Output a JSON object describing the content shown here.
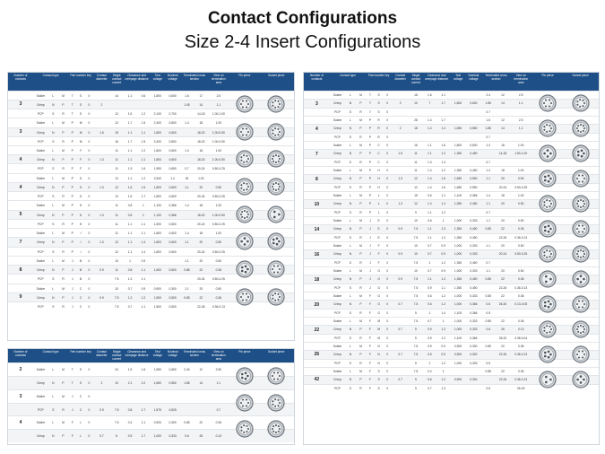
{
  "title": "Contact Configurations",
  "subtitle": "Size 2-4 Insert Configurations",
  "headers": {
    "num_contacts": "Number of contacts",
    "contact_type": "Contact type",
    "part_number_key": "Part number key",
    "contact_diameter": "Contact diameter",
    "single_contact_current": "Single contact current",
    "clearance_creepage": "Clearance and creepage distance",
    "test_voltage": "Test voltage",
    "nominal_voltage": "Nominal voltage",
    "termination_cross_section": "Terminated cross section",
    "view_on_termination": "View on termination area",
    "pin_piece": "Pin piece",
    "socket_piece": "Socket piece"
  },
  "contact_types": [
    "Solder",
    "Crimp",
    "PCP"
  ],
  "left_groups": [
    {
      "n": "3",
      "rows": [
        [
          "Solder",
          "L",
          "M",
          "T",
          "S",
          "0",
          "",
          "14",
          "1.1",
          "0.6",
          "1,800",
          "0,600",
          "1.6",
          "17",
          "2.5"
        ],
        [
          "Crimp",
          "N",
          "P",
          "T",
          "S",
          "0",
          "2",
          "",
          "",
          "",
          "",
          "",
          "1.05",
          "14",
          "1.1"
        ],
        [
          "PCP",
          "S",
          "R",
          "T",
          "S",
          "0",
          "",
          "12",
          "1.6",
          "1.2",
          "2,100",
          "0,700",
          "",
          "14-18",
          "1.00-1.00"
        ]
      ]
    },
    {
      "n": "3",
      "rows": [
        [
          "Solder",
          "L",
          "M",
          "P",
          "M",
          "0",
          "",
          "12",
          "1.7",
          "1.5",
          "2,400",
          "0,800",
          "1.4",
          "18",
          "1.00"
        ],
        [
          "Crimp",
          "N",
          "P",
          "P",
          "M",
          "0",
          "1.6",
          "15",
          "1.1",
          "1.1",
          "1,800",
          "0,600",
          "",
          "18-20",
          "1.00-0.50"
        ],
        [
          "PCP",
          "S",
          "R",
          "P",
          "M",
          "0",
          "",
          "16",
          "1.7",
          "1.5",
          "2,400",
          "0,800",
          "",
          "18-20",
          "1.00-0.50"
        ]
      ]
    },
    {
      "n": "4",
      "rows": [
        [
          "Solder",
          "L",
          "M",
          "P",
          "F",
          "0",
          "",
          "11",
          "1.1",
          "1.2",
          "1,800",
          "0,600",
          "1.4",
          "18",
          "1.00"
        ],
        [
          "Crimp",
          "N",
          "P",
          "P",
          "F",
          "0",
          "1.3",
          "11",
          "1.1",
          "1.1",
          "1,800",
          "0,600",
          "",
          "18-20",
          "1.00-0.50"
        ],
        [
          "PCP",
          "S",
          "R",
          "P",
          "F",
          "0",
          "",
          "11",
          "1.9",
          "1.6",
          "1,950",
          "0,650",
          "0.7",
          "20-24",
          "0.50-0.25"
        ]
      ]
    },
    {
      "n": "4",
      "rows": [
        [
          "Solder",
          "L",
          "M",
          "P",
          "G",
          "0",
          "",
          "12",
          "1.1",
          "1.2",
          "2,540",
          "1.4",
          "18",
          "1.00",
          ""
        ],
        [
          "Crimp",
          "N",
          "P",
          "P",
          "G",
          "0",
          "1.3",
          "12",
          "1.6",
          "1.6",
          "1,800",
          "0,600",
          "1.1",
          "20",
          "0.50"
        ],
        [
          "PCP",
          "S",
          "R",
          "P",
          "G",
          "0",
          "",
          "12",
          "1.6",
          "1.7",
          "1,800",
          "0,600",
          "",
          "20-24",
          "0.50-0.25"
        ]
      ]
    },
    {
      "n": "5",
      "rows": [
        [
          "Solder",
          "L",
          "M",
          "P",
          "H",
          "0",
          "",
          "11",
          "0.8",
          "1",
          "1,100",
          "0,366",
          "1.4",
          "18",
          "1.00"
        ],
        [
          "Crimp",
          "N",
          "P",
          "P",
          "H",
          "0",
          "1.3",
          "11",
          "0.8",
          "1",
          "1,100",
          "0,366",
          "",
          "18-20",
          "1.00-0.50"
        ],
        [
          "PCP",
          "S",
          "R",
          "P",
          "H",
          "0",
          "",
          "11",
          "1.1",
          "1.1",
          "1,500",
          "0,500",
          "",
          "20-24",
          "0.50-0.25"
        ]
      ]
    },
    {
      "n": "7",
      "rows": [
        [
          "Solder",
          "L",
          "M",
          "P",
          "I",
          "0",
          "",
          "11",
          "1.1",
          "1.1",
          "1,800",
          "0,600",
          "1.4",
          "18",
          "1.00"
        ],
        [
          "Crimp",
          "N",
          "P",
          "P",
          "I",
          "0",
          "1.3",
          "12",
          "1.1",
          "1.4",
          "1,800",
          "0,600",
          "1.1",
          "20",
          "0.50"
        ],
        [
          "PCP",
          "S",
          "R",
          "P",
          "I",
          "0",
          "",
          "12",
          "1.1",
          "1.4",
          "1,800",
          "0,600",
          "",
          "20-24",
          "0.50-0.25"
        ]
      ]
    },
    {
      "n": "8",
      "rows": [
        [
          "Solder",
          "L",
          "M",
          "J",
          "B",
          "0",
          "",
          "10",
          "1",
          "0.9",
          "",
          "",
          "1.1",
          "20",
          "0.50"
        ],
        [
          "Crimp",
          "N",
          "P",
          "J",
          "B",
          "0",
          "0.9",
          "11",
          "0.8",
          "1.1",
          "1,500",
          "0,500",
          "0.85",
          "22",
          "0.36"
        ],
        [
          "PCP",
          "S",
          "R",
          "J",
          "B",
          "0",
          "",
          "7.5",
          "1.2",
          "1.1",
          "",
          "",
          "",
          "20-24",
          "0.50-0.25"
        ]
      ]
    },
    {
      "n": "9",
      "rows": [
        [
          "Solder",
          "L",
          "M",
          "J",
          "C",
          "0",
          "",
          "10",
          "0.7",
          "0.9",
          "0,900",
          "0,300",
          "1.1",
          "20",
          "0.50"
        ],
        [
          "Crimp",
          "N",
          "P",
          "J",
          "C",
          "0",
          "0.9",
          "7.5",
          "1.2",
          "1.2",
          "1,500",
          "0,500",
          "0.85",
          "22",
          "0.36"
        ],
        [
          "PCP",
          "S",
          "R",
          "J",
          "C",
          "0",
          "",
          "7.5",
          "0.7",
          "1.1",
          "1,500",
          "0,500",
          "",
          "22-26",
          "0.36-0.13"
        ]
      ]
    }
  ],
  "bottom_groups": [
    {
      "n": "2",
      "rows": [
        [
          "Solder",
          "L",
          "M",
          "T",
          "S",
          "0",
          "",
          "24",
          "1.5",
          "1.6",
          "1,550",
          "0,650",
          "2.40",
          "12",
          "2.50"
        ],
        [
          "Crimp",
          "N",
          "P",
          "T",
          "S",
          "0",
          "2",
          "10",
          "2.1",
          "2.2",
          "1,650",
          "0,550",
          "1.85",
          "14",
          "1.1"
        ]
      ]
    },
    {
      "n": "3",
      "rows": [
        [
          "Solder",
          "L",
          "M",
          "J",
          "C",
          "0",
          "",
          "",
          "",
          "",
          "",
          "",
          "",
          "",
          ""
        ],
        [
          "PCP",
          "S",
          "R",
          "J",
          "C",
          "0",
          "0.9",
          "7.5",
          "0.8",
          "1.7",
          "1,575",
          "0,525",
          "",
          "",
          "0.7"
        ]
      ]
    },
    {
      "n": "4",
      "rows": [
        [
          "Solder",
          "L",
          "M",
          "F",
          "L",
          "0",
          "",
          "7.5",
          "0.4",
          "1.1",
          "0,900",
          "0,300",
          "0.85",
          "22",
          "0.36"
        ],
        [
          "Crimp",
          "N",
          "P",
          "F",
          "L",
          "0",
          "0.7",
          "6",
          "0.9",
          "1.7",
          "1,000",
          "0,333",
          "0.6",
          "26",
          "0.13"
        ]
      ]
    }
  ],
  "right_groups": [
    {
      "n": "3",
      "rows": [
        [
          "Solder",
          "L",
          "M",
          "T",
          "S",
          "0",
          "",
          "18",
          "1.6",
          "1.1",
          "",
          "",
          "2.4",
          "12",
          "2.5"
        ],
        [
          "Crimp",
          "N",
          "P",
          "T",
          "S",
          "0",
          "2",
          "10",
          "7",
          "1.7",
          "1,800",
          "0,600",
          "1.85",
          "14",
          "1.1"
        ],
        [
          "PCP",
          "S",
          "R",
          "T",
          "S",
          "0",
          "",
          "",
          "",
          "",
          "",
          "",
          "0.7",
          "",
          ""
        ]
      ]
    },
    {
      "n": "4",
      "rows": [
        [
          "Solder",
          "L",
          "M",
          "P",
          "R",
          "0",
          "",
          "28",
          "1.4",
          "1.7",
          "",
          "",
          "1.6",
          "12",
          "2.5"
        ],
        [
          "Crimp",
          "N",
          "P",
          "P",
          "R",
          "0",
          "2",
          "18",
          "1.4",
          "1.4",
          "1,650",
          "0,550",
          "1.85",
          "14",
          "1.1"
        ],
        [
          "PCP",
          "S",
          "R",
          "P",
          "R",
          "0",
          "",
          "",
          "",
          "",
          "",
          "",
          "0.7",
          "",
          ""
        ]
      ]
    },
    {
      "n": "7",
      "rows": [
        [
          "Solder",
          "L",
          "M",
          "P",
          "C",
          "0",
          "",
          "16",
          "1.1",
          "1.6",
          "1,800",
          "0,600",
          "1.4",
          "18",
          "1.00"
        ],
        [
          "Crimp",
          "N",
          "P",
          "P",
          "C",
          "0",
          "1.6",
          "11",
          "1.1",
          "1.2",
          "1,350",
          "0,450",
          "",
          "14-18",
          "1.50-1.00"
        ],
        [
          "PCP",
          "S",
          "R",
          "P",
          "C",
          "0",
          "",
          "11",
          "1.3",
          "1.4",
          "",
          "",
          "0.7",
          "",
          ""
        ]
      ]
    },
    {
      "n": "8",
      "rows": [
        [
          "Solder",
          "L",
          "M",
          "P",
          "H",
          "0",
          "",
          "11",
          "1.4",
          "1.2",
          "1,350",
          "0,450",
          "1.4",
          "18",
          "1.00"
        ],
        [
          "Crimp",
          "N",
          "P",
          "P",
          "H",
          "0",
          "1.3",
          "12",
          "1.4",
          "1.6",
          "1,650",
          "0,550",
          "1.1",
          "20",
          "0.50"
        ],
        [
          "PCP",
          "S",
          "R",
          "P",
          "H",
          "0",
          "",
          "12",
          "1.4",
          "1.6",
          "1,650",
          "0,550",
          "",
          "20-24",
          "0.50-0.25"
        ]
      ]
    },
    {
      "n": "10",
      "rows": [
        [
          "Solder",
          "L",
          "M",
          "P",
          "L",
          "0",
          "",
          "15",
          "0.6",
          "1.1",
          "1,100",
          "0,366",
          "1.4",
          "18",
          "1.00"
        ],
        [
          "Crimp",
          "N",
          "P",
          "P",
          "L",
          "0",
          "1.3",
          "12",
          "1.4",
          "1.4",
          "1,350",
          "0,450",
          "1.1",
          "20",
          "0.50"
        ],
        [
          "PCP",
          "S",
          "R",
          "P",
          "L",
          "0",
          "",
          "9",
          "1.1",
          "1.2",
          "",
          "",
          "0.7",
          "",
          ""
        ]
      ]
    },
    {
      "n": "14",
      "rows": [
        [
          "Solder",
          "L",
          "M",
          "J",
          "E",
          "0",
          "",
          "10",
          "0.6",
          "1",
          "1,000",
          "0,333",
          "1.1",
          "20",
          "0.50"
        ],
        [
          "Crimp",
          "N",
          "P",
          "J",
          "E",
          "0",
          "0.9",
          "7.5",
          "1.1",
          "1.3",
          "1,350",
          "0,450",
          "0.85",
          "22",
          "0.36"
        ],
        [
          "PCP",
          "S",
          "R",
          "J",
          "E",
          "0",
          "",
          "7.5",
          "1.1",
          "1.3",
          "1,350",
          "0,450",
          "",
          "22-26",
          "0.36-0.13"
        ]
      ]
    },
    {
      "n": "16",
      "rows": [
        [
          "Solder",
          "L",
          "M",
          "J",
          "F",
          "0",
          "",
          "10",
          "0.7",
          "0.9",
          "1,000",
          "0,333",
          "1.1",
          "20",
          "0.50"
        ],
        [
          "Crimp",
          "N",
          "P",
          "J",
          "F",
          "0",
          "0.9",
          "10",
          "0.7",
          "0.9",
          "1,000",
          "0,333",
          "",
          "20-24",
          "0.50-0.25"
        ],
        [
          "PCP",
          "S",
          "R",
          "J",
          "F",
          "0",
          "",
          "7.5",
          "1",
          "1.2",
          "1,350",
          "0,450",
          "0.7",
          "",
          ""
        ]
      ]
    },
    {
      "n": "18",
      "rows": [
        [
          "Solder",
          "L",
          "M",
          "J",
          "G",
          "0",
          "",
          "10",
          "0.7",
          "0.9",
          "1,000",
          "0,333",
          "1.1",
          "20",
          "0.50"
        ],
        [
          "Crimp",
          "N",
          "P",
          "J",
          "G",
          "0",
          "0.9",
          "7.5",
          "1.1",
          "1.3",
          "1,350",
          "0,450",
          "0.85",
          "22",
          "0.36"
        ],
        [
          "PCP",
          "S",
          "R",
          "J",
          "G",
          "0",
          "",
          "7.5",
          "0.9",
          "1.1",
          "1,350",
          "0,450",
          "",
          "22-26",
          "0.36-0.13"
        ]
      ]
    },
    {
      "n": "20",
      "rows": [
        [
          "Solder",
          "L",
          "M",
          "F",
          "G",
          "0",
          "",
          "7.5",
          "0.6",
          "1.2",
          "1,000",
          "0,333",
          "0.85",
          "22",
          "0.36"
        ],
        [
          "Crimp",
          "N",
          "P",
          "F",
          "G",
          "0",
          "0.7",
          "7.5",
          "0.6",
          "1.2",
          "1,000",
          "0,366",
          "0.6",
          "26-30",
          "0.13-0.05"
        ],
        [
          "PCP",
          "S",
          "R",
          "F",
          "G",
          "0",
          "",
          "5",
          "1",
          "1.4",
          "1,100",
          "0,366",
          "0.5",
          "",
          ""
        ]
      ]
    },
    {
      "n": "22",
      "rows": [
        [
          "Solder",
          "L",
          "M",
          "F",
          "M",
          "0",
          "",
          "7.5",
          "0.7",
          "1",
          "1,000",
          "0,333",
          "0.85",
          "22",
          "0.36"
        ],
        [
          "Crimp",
          "N",
          "P",
          "F",
          "M",
          "0",
          "0.7",
          "5",
          "0.9",
          "1.2",
          "1,000",
          "0,333",
          "0.6",
          "26",
          "0.13"
        ],
        [
          "PCP",
          "S",
          "R",
          "F",
          "M",
          "0",
          "",
          "5",
          "0.9",
          "1.2",
          "1,100",
          "0,366",
          "",
          "26-32",
          "0.08-0.04"
        ]
      ]
    },
    {
      "n": "26",
      "rows": [
        [
          "Solder",
          "L",
          "M",
          "F",
          "N",
          "0",
          "",
          "7.5",
          "0.5",
          "0.9",
          "0,900",
          "0,300",
          "0.85",
          "22",
          "0.36"
        ],
        [
          "Crimp",
          "N",
          "P",
          "F",
          "N",
          "0",
          "0.7",
          "7.5",
          "0.5",
          "0.9",
          "0,900",
          "0,300",
          "",
          "22-26",
          "0.36-0.13"
        ],
        [
          "PCP",
          "S",
          "R",
          "F",
          "N",
          "0",
          "",
          "5",
          "1",
          "1.2",
          "1,000",
          "0,333",
          "0.5",
          "",
          ""
        ]
      ]
    },
    {
      "n": "42",
      "rows": [
        [
          "Solder",
          "L",
          "M",
          "F",
          "S",
          "0",
          "",
          "7.5",
          "0.4",
          "1",
          "",
          "",
          "0.85",
          "22",
          "0.36"
        ],
        [
          "Crimp",
          "N",
          "P",
          "F",
          "S",
          "0",
          "0.7",
          "5",
          "0.6",
          "1.2",
          "0,900",
          "0,300",
          "",
          "22-26",
          "0.36-0.13"
        ],
        [
          "PCP",
          "S",
          "R",
          "F",
          "S",
          "0",
          "",
          "5",
          "0.7",
          "1.3",
          "",
          "",
          "0.5",
          "",
          "26-30"
        ]
      ]
    }
  ],
  "colors": {
    "header_bg": "#1e4f86",
    "border": "#cfd6dd",
    "alt_row": "#f2f4f6"
  }
}
